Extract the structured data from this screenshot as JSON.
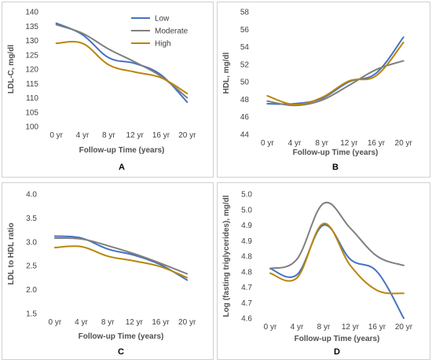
{
  "series_colors": {
    "Low": "#4472c4",
    "Moderate": "#7f7f7f",
    "High": "#b8860b"
  },
  "chart_data": [
    {
      "panel": "A",
      "type": "line",
      "x": [
        "0 yr",
        "4 yr",
        "8 yr",
        "12 yr",
        "16 yr",
        "20 yr"
      ],
      "ylabel": "LDL-C, mg/dl",
      "xlabel": "Follow-up Time (years)",
      "ylim": [
        100,
        140
      ],
      "yticks": [
        100,
        105,
        110,
        115,
        120,
        125,
        130,
        135,
        140
      ],
      "legend": "top-right",
      "series": [
        {
          "name": "Low",
          "values": [
            136,
            132,
            124,
            122,
            118,
            108.5
          ]
        },
        {
          "name": "Moderate",
          "values": [
            135.5,
            132.5,
            127,
            122.5,
            117.5,
            110
          ]
        },
        {
          "name": "High",
          "values": [
            129,
            129,
            121.5,
            119,
            117,
            111.5
          ]
        }
      ]
    },
    {
      "panel": "B",
      "type": "line",
      "x": [
        "0 yr",
        "4 yr",
        "8 yr",
        "12 yr",
        "16 yr",
        "20 yr"
      ],
      "ylabel": "HDL, mg/dl",
      "xlabel": "Follow-up Time (years)",
      "ylim": [
        44,
        58
      ],
      "yticks": [
        44,
        46,
        48,
        50,
        52,
        54,
        56,
        58
      ],
      "series": [
        {
          "name": "Low",
          "values": [
            47.5,
            47.5,
            48.1,
            50,
            51,
            55.1
          ]
        },
        {
          "name": "Moderate",
          "values": [
            47.8,
            47.3,
            47.9,
            49.6,
            51.4,
            52.4
          ]
        },
        {
          "name": "High",
          "values": [
            48.4,
            47.4,
            48.2,
            50.1,
            50.7,
            54.5
          ]
        }
      ]
    },
    {
      "panel": "C",
      "type": "line",
      "x": [
        "0 yr",
        "4 yr",
        "8 yr",
        "12 yr",
        "16 yr",
        "20 yr"
      ],
      "ylabel": "LDL to HDL ratio",
      "xlabel": "Follow-up Time (years)",
      "ylim": [
        1.5,
        4.0
      ],
      "yticks": [
        "1.5",
        "2.0",
        "2.5",
        "3.0",
        "3.5",
        "4.0"
      ],
      "series": [
        {
          "name": "Low",
          "values": [
            3.12,
            3.08,
            2.85,
            2.72,
            2.52,
            2.2
          ]
        },
        {
          "name": "Moderate",
          "values": [
            3.08,
            3.06,
            2.92,
            2.75,
            2.55,
            2.33
          ]
        },
        {
          "name": "High",
          "values": [
            2.88,
            2.9,
            2.7,
            2.6,
            2.48,
            2.25
          ]
        }
      ]
    },
    {
      "panel": "D",
      "type": "line",
      "x": [
        "0 yr",
        "4 yr",
        "8 yr",
        "12 yr",
        "16 yr",
        "20 yr"
      ],
      "ylabel": "Log (fasting triglycerides), mg/dl",
      "xlabel": "Follow-up Time (years)",
      "ylim": [
        4.6,
        5.0
      ],
      "yticks": [
        "4.6",
        "4.7",
        "4.7",
        "4.8",
        "4.8",
        "4.9",
        "4.9",
        "5.0",
        "5.0"
      ],
      "series": [
        {
          "name": "Low",
          "values": [
            4.76,
            4.74,
            4.9,
            4.79,
            4.75,
            4.6
          ]
        },
        {
          "name": "Moderate",
          "values": [
            4.76,
            4.79,
            4.97,
            4.89,
            4.8,
            4.77
          ]
        },
        {
          "name": "High",
          "values": [
            4.745,
            4.73,
            4.905,
            4.77,
            4.69,
            4.68
          ]
        }
      ]
    }
  ]
}
